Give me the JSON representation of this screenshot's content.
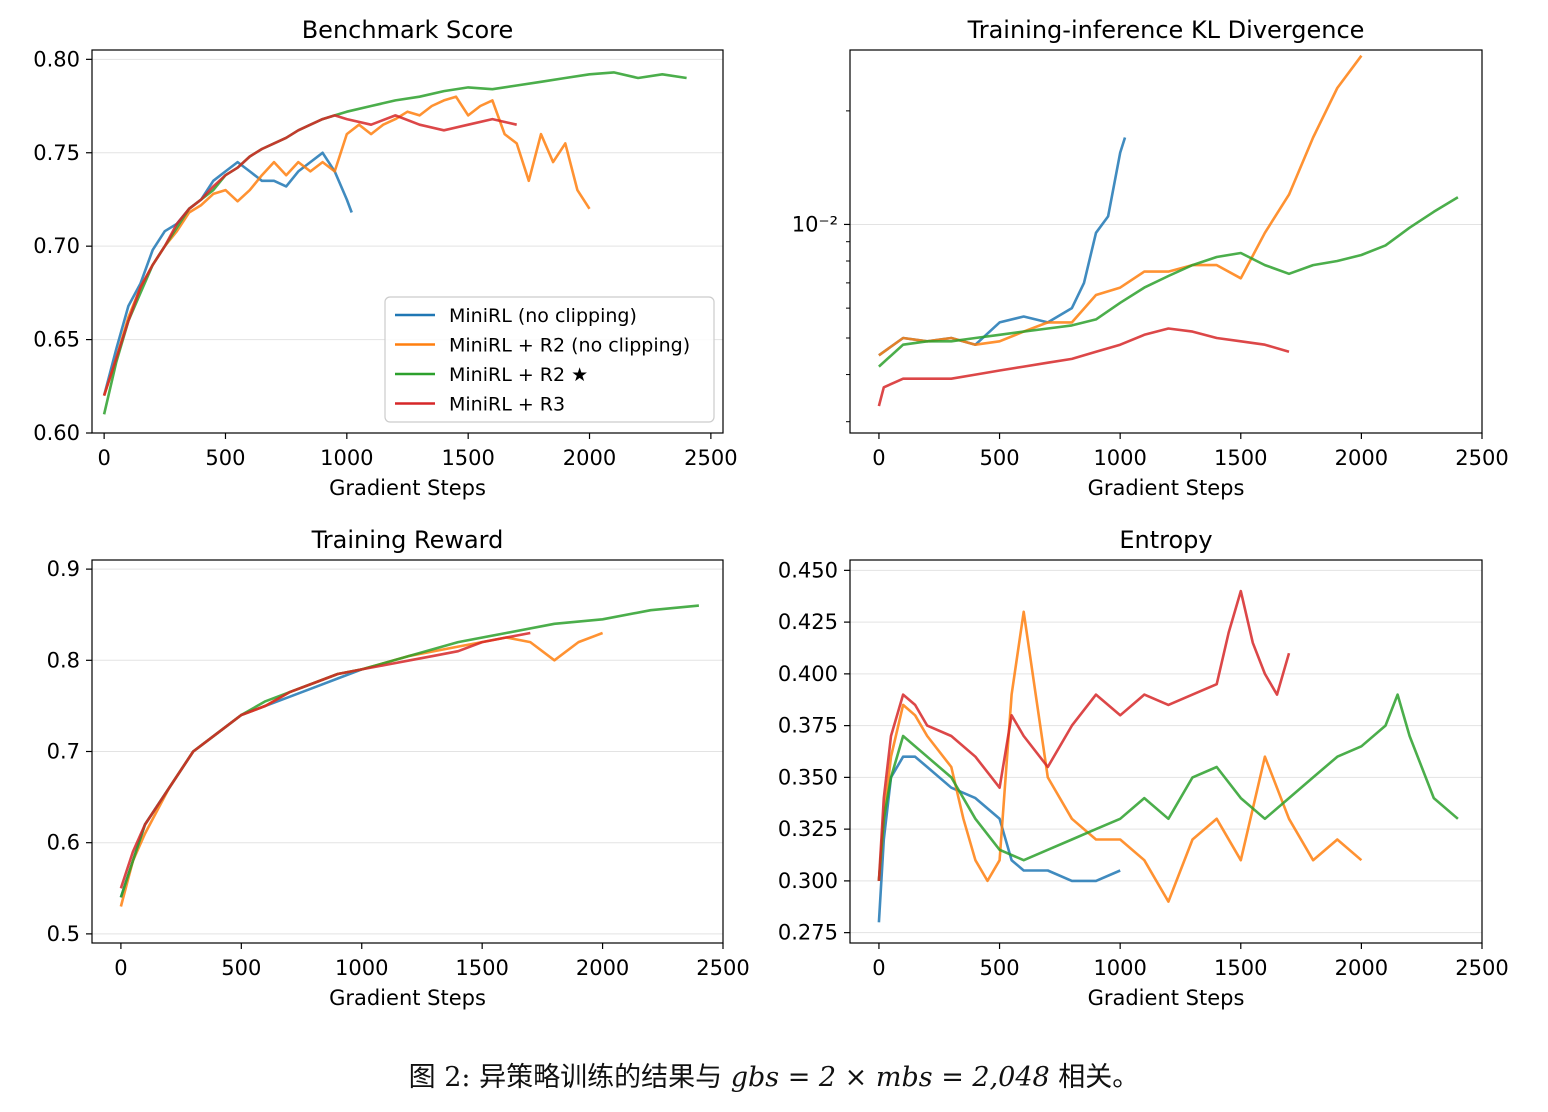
{
  "legend": {
    "entries": [
      {
        "label": "MiniRL (no clipping)",
        "color": "#1f77b4"
      },
      {
        "label": "MiniRL + R2 (no clipping)",
        "color": "#ff7f0e"
      },
      {
        "label": "MiniRL + R2 ★",
        "color": "#2ca02c"
      },
      {
        "label": "MiniRL + R3",
        "color": "#d62728"
      }
    ]
  },
  "caption": {
    "prefix": "图 2: 异策略训练的结果与 ",
    "math": "gbs = 2 × mbs = 2,048",
    "suffix": " 相关。"
  },
  "chart_data": [
    {
      "type": "line",
      "title": "Benchmark Score",
      "xlabel": "Gradient Steps",
      "ylabel": "",
      "xlim": [
        -50,
        2550
      ],
      "ylim": [
        0.6,
        0.805
      ],
      "yscale": "linear",
      "xticks": [
        0,
        500,
        1000,
        1500,
        2000,
        2500
      ],
      "yticks": [
        0.6,
        0.65,
        0.7,
        0.75,
        0.8
      ],
      "ytick_labels": [
        "0.60",
        "0.65",
        "0.70",
        "0.75",
        "0.80"
      ],
      "grid": "horizontal",
      "legend": "lower-right",
      "series": [
        {
          "name": "MiniRL (no clipping)",
          "color": "#1f77b4",
          "x": [
            0,
            50,
            100,
            150,
            200,
            250,
            300,
            350,
            400,
            450,
            500,
            550,
            600,
            650,
            700,
            750,
            800,
            850,
            900,
            950,
            1000,
            1020
          ],
          "y": [
            0.62,
            0.645,
            0.668,
            0.68,
            0.698,
            0.708,
            0.712,
            0.72,
            0.725,
            0.735,
            0.74,
            0.745,
            0.74,
            0.735,
            0.735,
            0.732,
            0.74,
            0.745,
            0.75,
            0.74,
            0.725,
            0.718
          ]
        },
        {
          "name": "MiniRL + R2 (no clipping)",
          "color": "#ff7f0e",
          "x": [
            0,
            50,
            100,
            150,
            200,
            250,
            300,
            350,
            400,
            450,
            500,
            550,
            600,
            650,
            700,
            750,
            800,
            850,
            900,
            950,
            1000,
            1050,
            1100,
            1150,
            1200,
            1250,
            1300,
            1350,
            1400,
            1450,
            1500,
            1550,
            1600,
            1650,
            1700,
            1750,
            1800,
            1850,
            1900,
            1950,
            2000
          ],
          "y": [
            0.62,
            0.64,
            0.662,
            0.678,
            0.69,
            0.7,
            0.708,
            0.718,
            0.722,
            0.728,
            0.73,
            0.724,
            0.73,
            0.738,
            0.745,
            0.738,
            0.745,
            0.74,
            0.745,
            0.74,
            0.76,
            0.765,
            0.76,
            0.765,
            0.768,
            0.772,
            0.77,
            0.775,
            0.778,
            0.78,
            0.77,
            0.775,
            0.778,
            0.76,
            0.755,
            0.735,
            0.76,
            0.745,
            0.755,
            0.73,
            0.72
          ]
        },
        {
          "name": "MiniRL + R2 ★",
          "color": "#2ca02c",
          "x": [
            0,
            50,
            100,
            150,
            200,
            250,
            300,
            350,
            400,
            450,
            500,
            550,
            600,
            650,
            700,
            750,
            800,
            850,
            900,
            950,
            1000,
            1100,
            1200,
            1300,
            1400,
            1500,
            1600,
            1700,
            1800,
            1900,
            2000,
            2100,
            2200,
            2300,
            2400
          ],
          "y": [
            0.61,
            0.638,
            0.66,
            0.675,
            0.69,
            0.7,
            0.71,
            0.72,
            0.725,
            0.73,
            0.738,
            0.742,
            0.748,
            0.752,
            0.755,
            0.758,
            0.762,
            0.765,
            0.768,
            0.77,
            0.772,
            0.775,
            0.778,
            0.78,
            0.783,
            0.785,
            0.784,
            0.786,
            0.788,
            0.79,
            0.792,
            0.793,
            0.79,
            0.792,
            0.79
          ]
        },
        {
          "name": "MiniRL + R3",
          "color": "#d62728",
          "x": [
            0,
            50,
            100,
            150,
            200,
            250,
            300,
            350,
            400,
            450,
            500,
            550,
            600,
            650,
            700,
            750,
            800,
            850,
            900,
            950,
            1000,
            1100,
            1200,
            1300,
            1400,
            1500,
            1600,
            1700
          ],
          "y": [
            0.62,
            0.64,
            0.66,
            0.678,
            0.69,
            0.7,
            0.712,
            0.72,
            0.725,
            0.732,
            0.738,
            0.742,
            0.748,
            0.752,
            0.755,
            0.758,
            0.762,
            0.765,
            0.768,
            0.77,
            0.768,
            0.765,
            0.77,
            0.765,
            0.762,
            0.765,
            0.768,
            0.765
          ]
        }
      ]
    },
    {
      "type": "line",
      "title": "Training-inference KL Divergence",
      "xlabel": "Gradient Steps",
      "ylabel": "",
      "xlim": [
        -120,
        2500
      ],
      "ylim": [
        0.0028,
        0.029
      ],
      "yscale": "log",
      "xticks": [
        0,
        500,
        1000,
        1500,
        2000,
        2500
      ],
      "yticks": [
        0.01
      ],
      "ytick_labels": [
        "10⁻²"
      ],
      "grid": "horizontal",
      "series": [
        {
          "name": "MiniRL (no clipping)",
          "color": "#1f77b4",
          "x": [
            0,
            100,
            200,
            300,
            400,
            500,
            600,
            700,
            800,
            850,
            900,
            950,
            1000,
            1020
          ],
          "y": [
            0.0045,
            0.005,
            0.0049,
            0.005,
            0.0048,
            0.0055,
            0.0057,
            0.0055,
            0.006,
            0.007,
            0.0095,
            0.0105,
            0.0155,
            0.017
          ]
        },
        {
          "name": "MiniRL + R2 (no clipping)",
          "color": "#ff7f0e",
          "x": [
            0,
            100,
            200,
            300,
            400,
            500,
            600,
            700,
            800,
            900,
            1000,
            1100,
            1200,
            1300,
            1400,
            1500,
            1600,
            1700,
            1800,
            1900,
            2000
          ],
          "y": [
            0.0045,
            0.005,
            0.0049,
            0.005,
            0.0048,
            0.0049,
            0.0052,
            0.0055,
            0.0055,
            0.0065,
            0.0068,
            0.0075,
            0.0075,
            0.0078,
            0.0078,
            0.0072,
            0.0095,
            0.012,
            0.017,
            0.023,
            0.028
          ]
        },
        {
          "name": "MiniRL + R2 ★",
          "color": "#2ca02c",
          "x": [
            0,
            100,
            200,
            300,
            400,
            500,
            600,
            700,
            800,
            900,
            1000,
            1100,
            1200,
            1300,
            1400,
            1500,
            1600,
            1700,
            1800,
            1900,
            2000,
            2100,
            2200,
            2300,
            2400
          ],
          "y": [
            0.0042,
            0.0048,
            0.0049,
            0.0049,
            0.005,
            0.0051,
            0.0052,
            0.0053,
            0.0054,
            0.0056,
            0.0062,
            0.0068,
            0.0073,
            0.0078,
            0.0082,
            0.0084,
            0.0078,
            0.0074,
            0.0078,
            0.008,
            0.0083,
            0.0088,
            0.0098,
            0.0108,
            0.0118
          ]
        },
        {
          "name": "MiniRL + R3",
          "color": "#d62728",
          "x": [
            0,
            20,
            100,
            200,
            300,
            400,
            500,
            600,
            700,
            800,
            900,
            1000,
            1100,
            1200,
            1300,
            1400,
            1500,
            1600,
            1700
          ],
          "y": [
            0.0033,
            0.0037,
            0.0039,
            0.0039,
            0.0039,
            0.004,
            0.0041,
            0.0042,
            0.0043,
            0.0044,
            0.0046,
            0.0048,
            0.0051,
            0.0053,
            0.0052,
            0.005,
            0.0049,
            0.0048,
            0.0046
          ]
        }
      ]
    },
    {
      "type": "line",
      "title": "Training Reward",
      "xlabel": "Gradient Steps",
      "ylabel": "",
      "xlim": [
        -120,
        2500
      ],
      "ylim": [
        0.49,
        0.91
      ],
      "yscale": "linear",
      "xticks": [
        0,
        500,
        1000,
        1500,
        2000,
        2500
      ],
      "yticks": [
        0.5,
        0.6,
        0.7,
        0.8,
        0.9
      ],
      "ytick_labels": [
        "0.5",
        "0.6",
        "0.7",
        "0.8",
        "0.9"
      ],
      "grid": "horizontal",
      "series": [
        {
          "name": "MiniRL (no clipping)",
          "color": "#1f77b4",
          "x": [
            0,
            50,
            100,
            200,
            300,
            400,
            500,
            600,
            700,
            800,
            900,
            1000
          ],
          "y": [
            0.54,
            0.58,
            0.62,
            0.66,
            0.7,
            0.72,
            0.74,
            0.75,
            0.76,
            0.77,
            0.78,
            0.79
          ]
        },
        {
          "name": "MiniRL + R2 (no clipping)",
          "color": "#ff7f0e",
          "x": [
            0,
            50,
            100,
            200,
            300,
            400,
            500,
            600,
            700,
            800,
            900,
            1000,
            1200,
            1400,
            1600,
            1700,
            1800,
            1900,
            2000
          ],
          "y": [
            0.53,
            0.58,
            0.61,
            0.66,
            0.7,
            0.72,
            0.74,
            0.75,
            0.765,
            0.775,
            0.785,
            0.79,
            0.805,
            0.815,
            0.825,
            0.82,
            0.8,
            0.82,
            0.83
          ]
        },
        {
          "name": "MiniRL + R2 ★",
          "color": "#2ca02c",
          "x": [
            0,
            50,
            100,
            200,
            300,
            400,
            500,
            600,
            700,
            800,
            900,
            1000,
            1200,
            1400,
            1600,
            1800,
            2000,
            2200,
            2400
          ],
          "y": [
            0.54,
            0.58,
            0.62,
            0.66,
            0.7,
            0.72,
            0.74,
            0.755,
            0.765,
            0.775,
            0.785,
            0.79,
            0.805,
            0.82,
            0.83,
            0.84,
            0.845,
            0.855,
            0.86
          ]
        },
        {
          "name": "MiniRL + R3",
          "color": "#d62728",
          "x": [
            0,
            50,
            100,
            200,
            300,
            400,
            500,
            600,
            700,
            800,
            900,
            1000,
            1100,
            1200,
            1300,
            1400,
            1500,
            1600,
            1700
          ],
          "y": [
            0.55,
            0.59,
            0.62,
            0.66,
            0.7,
            0.72,
            0.74,
            0.75,
            0.765,
            0.775,
            0.785,
            0.79,
            0.795,
            0.8,
            0.805,
            0.81,
            0.82,
            0.825,
            0.83
          ]
        }
      ]
    },
    {
      "type": "line",
      "title": "Entropy",
      "xlabel": "Gradient Steps",
      "ylabel": "",
      "xlim": [
        -120,
        2500
      ],
      "ylim": [
        0.27,
        0.455
      ],
      "yscale": "linear",
      "xticks": [
        0,
        500,
        1000,
        1500,
        2000,
        2500
      ],
      "yticks": [
        0.275,
        0.3,
        0.325,
        0.35,
        0.375,
        0.4,
        0.425,
        0.45
      ],
      "ytick_labels": [
        "0.275",
        "0.300",
        "0.325",
        "0.350",
        "0.375",
        "0.400",
        "0.425",
        "0.450"
      ],
      "grid": "horizontal",
      "series": [
        {
          "name": "MiniRL (no clipping)",
          "color": "#1f77b4",
          "x": [
            0,
            20,
            50,
            100,
            150,
            200,
            300,
            400,
            500,
            550,
            600,
            700,
            800,
            900,
            1000
          ],
          "y": [
            0.28,
            0.32,
            0.35,
            0.36,
            0.36,
            0.355,
            0.345,
            0.34,
            0.33,
            0.31,
            0.305,
            0.305,
            0.3,
            0.3,
            0.305
          ]
        },
        {
          "name": "MiniRL + R2 (no clipping)",
          "color": "#ff7f0e",
          "x": [
            0,
            20,
            50,
            100,
            150,
            200,
            300,
            350,
            400,
            450,
            500,
            550,
            600,
            650,
            700,
            800,
            900,
            1000,
            1100,
            1200,
            1300,
            1400,
            1500,
            1600,
            1700,
            1800,
            1900,
            2000
          ],
          "y": [
            0.3,
            0.33,
            0.36,
            0.385,
            0.38,
            0.37,
            0.355,
            0.33,
            0.31,
            0.3,
            0.31,
            0.39,
            0.43,
            0.39,
            0.35,
            0.33,
            0.32,
            0.32,
            0.31,
            0.29,
            0.32,
            0.33,
            0.31,
            0.36,
            0.33,
            0.31,
            0.32,
            0.31
          ]
        },
        {
          "name": "MiniRL + R2 ★",
          "color": "#2ca02c",
          "x": [
            0,
            20,
            50,
            100,
            200,
            300,
            400,
            500,
            600,
            700,
            800,
            900,
            1000,
            1100,
            1200,
            1300,
            1400,
            1500,
            1600,
            1700,
            1800,
            1900,
            2000,
            2100,
            2150,
            2200,
            2300,
            2400
          ],
          "y": [
            0.3,
            0.33,
            0.35,
            0.37,
            0.36,
            0.35,
            0.33,
            0.315,
            0.31,
            0.315,
            0.32,
            0.325,
            0.33,
            0.34,
            0.33,
            0.35,
            0.355,
            0.34,
            0.33,
            0.34,
            0.35,
            0.36,
            0.365,
            0.375,
            0.39,
            0.37,
            0.34,
            0.33
          ]
        },
        {
          "name": "MiniRL + R3",
          "color": "#d62728",
          "x": [
            0,
            20,
            50,
            100,
            150,
            200,
            300,
            400,
            500,
            550,
            600,
            700,
            800,
            900,
            1000,
            1100,
            1200,
            1300,
            1400,
            1450,
            1500,
            1550,
            1600,
            1650,
            1700
          ],
          "y": [
            0.3,
            0.34,
            0.37,
            0.39,
            0.385,
            0.375,
            0.37,
            0.36,
            0.345,
            0.38,
            0.37,
            0.355,
            0.375,
            0.39,
            0.38,
            0.39,
            0.385,
            0.39,
            0.395,
            0.42,
            0.44,
            0.415,
            0.4,
            0.39,
            0.41
          ]
        }
      ]
    }
  ]
}
